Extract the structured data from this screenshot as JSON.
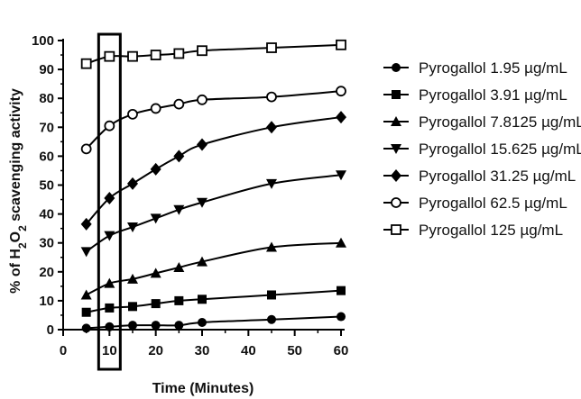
{
  "chart_data": {
    "type": "line",
    "xlabel": "Time (Minutes)",
    "ylabel": {
      "prefix": "% of H",
      "sub1": "2",
      "mid": "O",
      "sub2": "2",
      "suffix": " scavenging activity"
    },
    "xlim": [
      0,
      60
    ],
    "ylim": [
      0,
      100
    ],
    "xticks": [
      0,
      10,
      20,
      30,
      40,
      50,
      60
    ],
    "yticks": [
      0,
      10,
      20,
      30,
      40,
      50,
      60,
      70,
      80,
      90,
      100
    ],
    "x": [
      5,
      10,
      15,
      20,
      25,
      30,
      45,
      60
    ],
    "highlight_x": 10,
    "grid": false,
    "legend_position": "right",
    "series": [
      {
        "name": "Pyrogallol 1.95 µg/mL",
        "marker": "circle-filled",
        "values": [
          0.5,
          1,
          1.5,
          1.5,
          1.5,
          2.5,
          3.5,
          4.5
        ]
      },
      {
        "name": "Pyrogallol 3.91 µg/mL",
        "marker": "square-filled",
        "values": [
          6,
          7.5,
          8,
          9,
          10,
          10.5,
          12,
          13.5
        ]
      },
      {
        "name": "Pyrogallol 7.8125 µg/mL",
        "marker": "triangle-up",
        "values": [
          12,
          16,
          17.5,
          19.5,
          21.5,
          23.5,
          28.5,
          30
        ]
      },
      {
        "name": "Pyrogallol 15.625 µg/mL",
        "marker": "triangle-down",
        "values": [
          27,
          32.5,
          35.5,
          38.5,
          41.5,
          44,
          50.5,
          53.5
        ]
      },
      {
        "name": "Pyrogallol 31.25 µg/mL",
        "marker": "diamond-filled",
        "values": [
          36.5,
          45.5,
          50.5,
          55.5,
          60,
          64,
          70,
          73.5
        ]
      },
      {
        "name": "Pyrogallol 62.5 µg/mL",
        "marker": "circle-open",
        "values": [
          62.5,
          70.5,
          74.5,
          76.5,
          78,
          79.5,
          80.5,
          82.5
        ]
      },
      {
        "name": "Pyrogallol 125 µg/mL",
        "marker": "square-open",
        "values": [
          92,
          94.5,
          94.5,
          95,
          95.5,
          96.5,
          97.5,
          98.5
        ]
      }
    ]
  }
}
